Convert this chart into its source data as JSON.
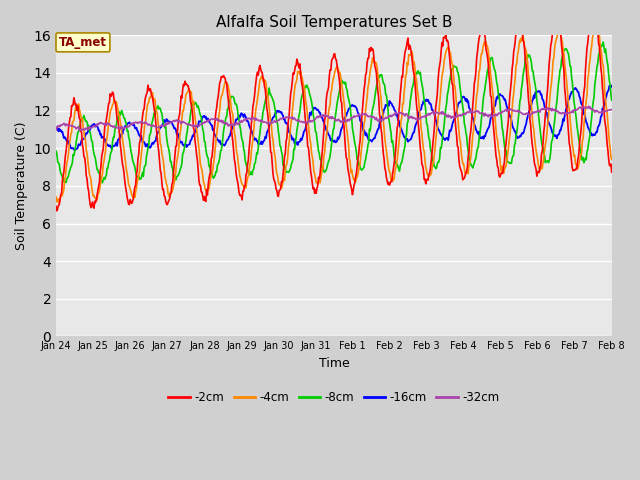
{
  "title": "Alfalfa Soil Temperatures Set B",
  "xlabel": "Time",
  "ylabel": "Soil Temperature (C)",
  "ylim": [
    0,
    16
  ],
  "yticks": [
    0,
    2,
    4,
    6,
    8,
    10,
    12,
    14,
    16
  ],
  "fig_bg_color": "#d0d0d0",
  "plot_bg_color": "#e8e8e8",
  "legend_label": "TA_met",
  "legend_box_color": "#ffffcc",
  "legend_border_color": "#aa8800",
  "series_colors": {
    "-2cm": "#ff0000",
    "-4cm": "#ff8800",
    "-8cm": "#00cc00",
    "-16cm": "#0000ff",
    "-32cm": "#aa44aa"
  },
  "x_tick_labels": [
    "Jan 24",
    "Jan 25",
    "Jan 26",
    "Jan 27",
    "Jan 28",
    "Jan 29",
    "Jan 30",
    "Jan 31",
    "Feb 1",
    "Feb 2",
    "Feb 3",
    "Feb 4",
    "Feb 5",
    "Feb 6",
    "Feb 7",
    "Feb 8"
  ],
  "x_tick_positions": [
    0,
    1,
    2,
    3,
    4,
    5,
    6,
    7,
    8,
    9,
    10,
    11,
    12,
    13,
    14,
    15
  ]
}
